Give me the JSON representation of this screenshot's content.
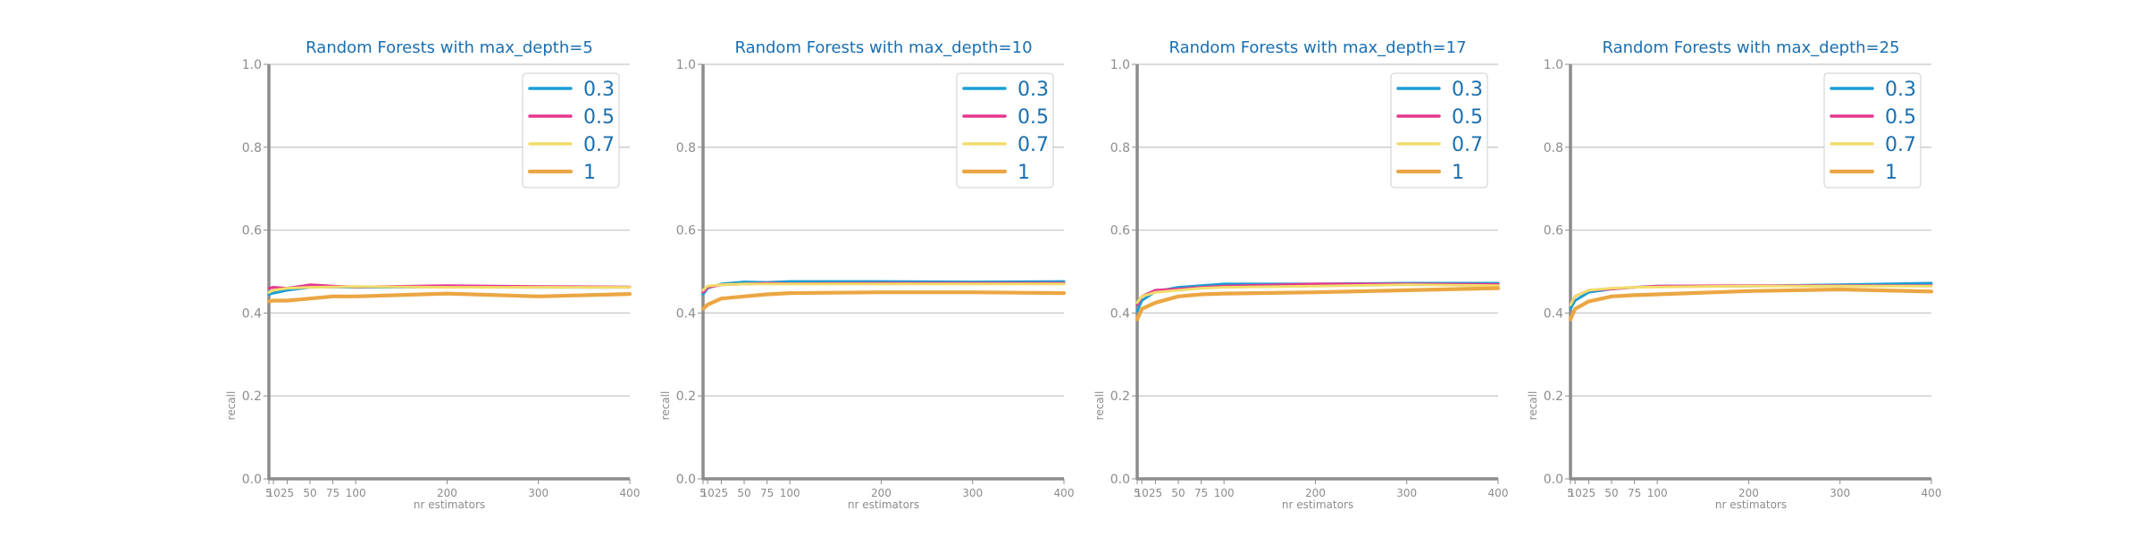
{
  "chart_data": [
    {
      "type": "line",
      "title": "Random Forests with max_depth=5",
      "xlabel": "nr estimators",
      "ylabel": "recall",
      "ylim": [
        0.0,
        1.0
      ],
      "xlim": [
        5,
        400
      ],
      "xticks": [
        5,
        10,
        25,
        50,
        75,
        100,
        200,
        300,
        400
      ],
      "yticks": [
        0.0,
        0.2,
        0.4,
        0.6,
        0.8,
        1.0
      ],
      "grid": "horizontal",
      "legend_position": "upper right",
      "x": [
        5,
        10,
        25,
        50,
        75,
        100,
        200,
        300,
        400
      ],
      "series": [
        {
          "name": "0.3",
          "color": "#1a9fd6",
          "values": [
            0.445,
            0.448,
            0.455,
            0.462,
            0.463,
            0.462,
            0.463,
            0.462,
            0.462
          ]
        },
        {
          "name": "0.5",
          "color": "#e6368f",
          "values": [
            0.46,
            0.462,
            0.46,
            0.468,
            0.465,
            0.463,
            0.466,
            0.464,
            0.463
          ]
        },
        {
          "name": "0.7",
          "color": "#f2dc6b",
          "values": [
            0.45,
            0.455,
            0.46,
            0.462,
            0.463,
            0.464,
            0.462,
            0.462,
            0.462
          ]
        },
        {
          "name": "1",
          "color": "#eba643",
          "values": [
            0.428,
            0.43,
            0.43,
            0.435,
            0.44,
            0.44,
            0.447,
            0.44,
            0.446
          ]
        }
      ]
    },
    {
      "type": "line",
      "title": "Random Forests with max_depth=10",
      "xlabel": "nr estimators",
      "ylabel": "recall",
      "ylim": [
        0.0,
        1.0
      ],
      "xlim": [
        5,
        400
      ],
      "xticks": [
        5,
        10,
        25,
        50,
        75,
        100,
        200,
        300,
        400
      ],
      "yticks": [
        0.0,
        0.2,
        0.4,
        0.6,
        0.8,
        1.0
      ],
      "grid": "horizontal",
      "legend_position": "upper right",
      "x": [
        5,
        10,
        25,
        50,
        75,
        100,
        200,
        300,
        400
      ],
      "series": [
        {
          "name": "0.3",
          "color": "#1a9fd6",
          "values": [
            0.445,
            0.46,
            0.47,
            0.475,
            0.474,
            0.476,
            0.476,
            0.475,
            0.476
          ]
        },
        {
          "name": "0.5",
          "color": "#e6368f",
          "values": [
            0.45,
            0.462,
            0.468,
            0.47,
            0.472,
            0.471,
            0.472,
            0.472,
            0.472
          ]
        },
        {
          "name": "0.7",
          "color": "#f2dc6b",
          "values": [
            0.455,
            0.465,
            0.468,
            0.47,
            0.47,
            0.47,
            0.47,
            0.47,
            0.47
          ]
        },
        {
          "name": "1",
          "color": "#eba643",
          "values": [
            0.41,
            0.42,
            0.435,
            0.44,
            0.445,
            0.448,
            0.45,
            0.45,
            0.448
          ]
        }
      ]
    },
    {
      "type": "line",
      "title": "Random Forests with max_depth=17",
      "xlabel": "nr estimators",
      "ylabel": "recall",
      "ylim": [
        0.0,
        1.0
      ],
      "xlim": [
        5,
        400
      ],
      "xticks": [
        5,
        10,
        25,
        50,
        75,
        100,
        200,
        300,
        400
      ],
      "yticks": [
        0.0,
        0.2,
        0.4,
        0.6,
        0.8,
        1.0
      ],
      "grid": "horizontal",
      "legend_position": "upper right",
      "x": [
        5,
        10,
        25,
        50,
        75,
        100,
        200,
        300,
        400
      ],
      "series": [
        {
          "name": "0.3",
          "color": "#1a9fd6",
          "values": [
            0.405,
            0.43,
            0.452,
            0.462,
            0.466,
            0.47,
            0.47,
            0.472,
            0.472
          ]
        },
        {
          "name": "0.5",
          "color": "#e6368f",
          "values": [
            0.42,
            0.44,
            0.455,
            0.458,
            0.462,
            0.465,
            0.47,
            0.47,
            0.469
          ]
        },
        {
          "name": "0.7",
          "color": "#f2dc6b",
          "values": [
            0.425,
            0.44,
            0.45,
            0.455,
            0.46,
            0.462,
            0.465,
            0.468,
            0.466
          ]
        },
        {
          "name": "1",
          "color": "#eba643",
          "values": [
            0.385,
            0.41,
            0.425,
            0.44,
            0.445,
            0.447,
            0.45,
            0.455,
            0.46
          ]
        }
      ]
    },
    {
      "type": "line",
      "title": "Random Forests with max_depth=25",
      "xlabel": "nr estimators",
      "ylabel": "recall",
      "ylim": [
        0.0,
        1.0
      ],
      "xlim": [
        5,
        400
      ],
      "xticks": [
        5,
        10,
        25,
        50,
        75,
        100,
        200,
        300,
        400
      ],
      "yticks": [
        0.0,
        0.2,
        0.4,
        0.6,
        0.8,
        1.0
      ],
      "grid": "horizontal",
      "legend_position": "upper right",
      "x": [
        5,
        10,
        25,
        50,
        75,
        100,
        200,
        300,
        400
      ],
      "series": [
        {
          "name": "0.3",
          "color": "#1a9fd6",
          "values": [
            0.41,
            0.43,
            0.45,
            0.458,
            0.462,
            0.465,
            0.465,
            0.468,
            0.472
          ]
        },
        {
          "name": "0.5",
          "color": "#e6368f",
          "values": [
            0.42,
            0.44,
            0.455,
            0.458,
            0.462,
            0.465,
            0.466,
            0.466,
            0.466
          ]
        },
        {
          "name": "0.7",
          "color": "#f2dc6b",
          "values": [
            0.42,
            0.44,
            0.455,
            0.46,
            0.462,
            0.463,
            0.465,
            0.465,
            0.465
          ]
        },
        {
          "name": "1",
          "color": "#eba643",
          "values": [
            0.385,
            0.41,
            0.428,
            0.44,
            0.443,
            0.445,
            0.453,
            0.457,
            0.452
          ]
        }
      ]
    }
  ]
}
